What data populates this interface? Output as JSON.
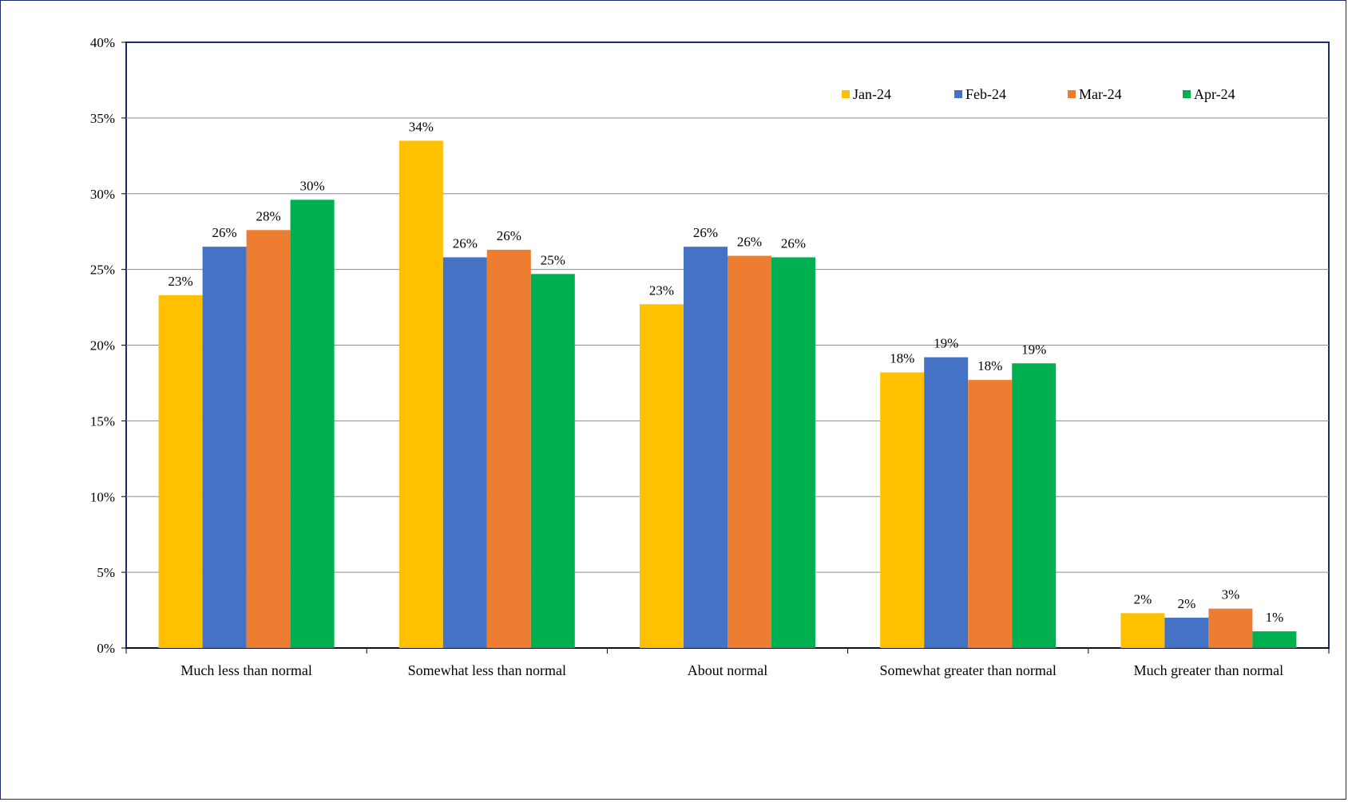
{
  "chart_data": {
    "type": "bar",
    "title": "",
    "xlabel": "",
    "ylabel": "",
    "ylim": [
      0,
      40
    ],
    "yticks": [
      "0%",
      "5%",
      "10%",
      "15%",
      "20%",
      "25%",
      "30%",
      "35%",
      "40%"
    ],
    "grid": true,
    "legend_position": "top-right (inside plot)",
    "categories": [
      "Much less than normal",
      "Somewhat less than normal",
      "About normal",
      "Somewhat greater than normal",
      "Much greater than normal"
    ],
    "series": [
      {
        "name": "Jan-24",
        "color": "#FFC000",
        "values": [
          23.3,
          33.5,
          22.7,
          18.2,
          2.3
        ],
        "labels": [
          "23%",
          "34%",
          "23%",
          "18%",
          "2%"
        ]
      },
      {
        "name": "Feb-24",
        "color": "#4472C4",
        "values": [
          26.5,
          25.8,
          26.5,
          19.2,
          2.0
        ],
        "labels": [
          "26%",
          "26%",
          "26%",
          "19%",
          "2%"
        ]
      },
      {
        "name": "Mar-24",
        "color": "#ED7D31",
        "values": [
          27.6,
          26.3,
          25.9,
          17.7,
          2.6
        ],
        "labels": [
          "28%",
          "26%",
          "26%",
          "18%",
          "3%"
        ]
      },
      {
        "name": "Apr-24",
        "color": "#00B050",
        "values": [
          29.6,
          24.7,
          25.8,
          18.8,
          1.1
        ],
        "labels": [
          "30%",
          "25%",
          "26%",
          "19%",
          "1%"
        ]
      }
    ]
  }
}
